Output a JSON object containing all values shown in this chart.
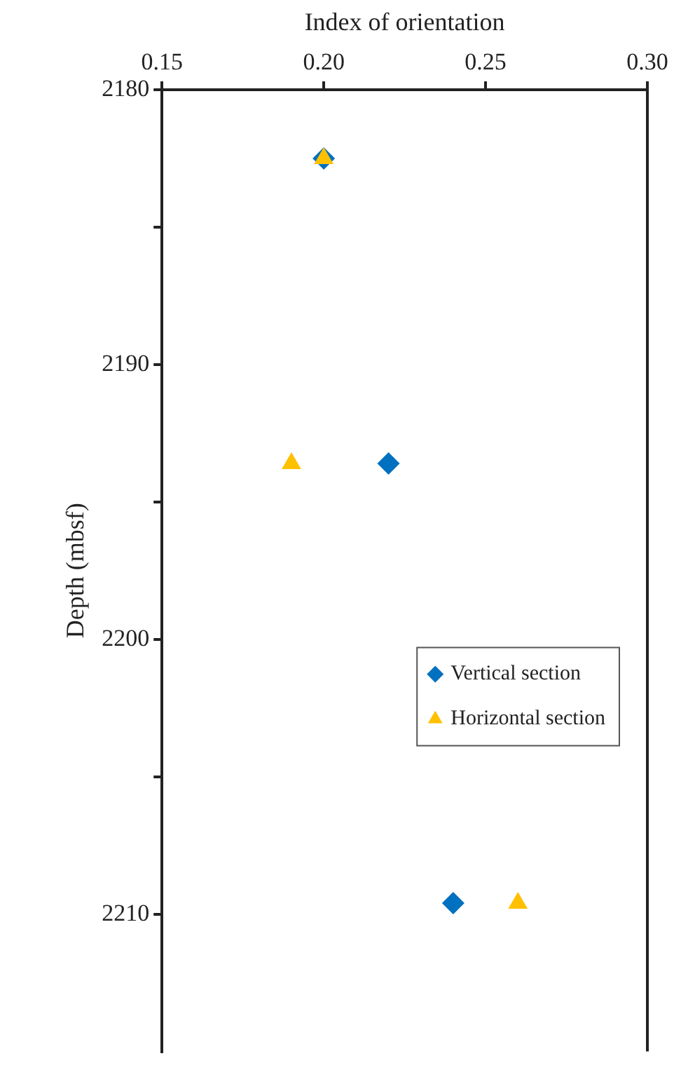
{
  "chart_data": {
    "type": "scatter",
    "xlabel": "Index of orientation",
    "ylabel": "Depth (mbsf)",
    "xlim": [
      0.15,
      0.3
    ],
    "xticks": [
      {
        "value": 0.15,
        "label": "0.15"
      },
      {
        "value": 0.2,
        "label": "0.20"
      },
      {
        "value": 0.25,
        "label": "0.25"
      },
      {
        "value": 0.3,
        "label": "0.30"
      }
    ],
    "ylim": [
      2215,
      2180
    ],
    "yticks": [
      2180,
      {
        "value": 2185,
        "label": null
      },
      2190,
      {
        "value": 2195,
        "label": null
      },
      2200,
      {
        "value": 2205,
        "label": null
      },
      2210
    ],
    "legend": "right",
    "grid": false,
    "series": [
      {
        "name": "Vertical section",
        "color": "#0070c0",
        "marker": "diamond",
        "x": [
          0.2,
          0.22,
          0.24
        ],
        "values": [
          2182.5,
          2193.6,
          2209.6
        ]
      },
      {
        "name": "Horizontal section",
        "color": "#ffc000",
        "marker": "triangle",
        "x": [
          0.2,
          0.19,
          0.26
        ],
        "values": [
          2182.5,
          2193.6,
          2209.6
        ]
      }
    ]
  }
}
